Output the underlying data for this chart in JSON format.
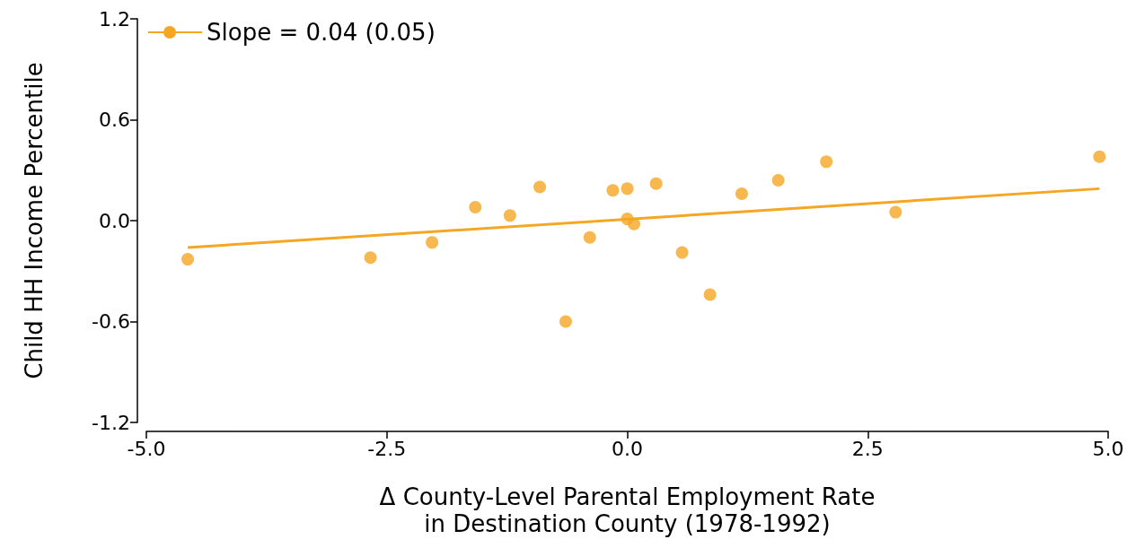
{
  "chart_data": {
    "type": "scatter",
    "xlabel": "Δ County-Level Parental Employment Rate\nin Destination County (1978-1992)",
    "ylabel": "Child HH Income Percentile",
    "xlim": [
      -5,
      5
    ],
    "xticks": [
      {
        "value": -5,
        "label": "-5.0"
      },
      -2.5,
      {
        "value": 0,
        "label": "0.0"
      },
      2.5,
      {
        "value": 5,
        "label": "5.0"
      }
    ],
    "ylim": [
      -1.2,
      1.2
    ],
    "yticks": [
      -1.2,
      -0.6,
      {
        "value": 0,
        "label": "0.0"
      },
      0.6,
      1.2
    ],
    "grid": false,
    "legend": "top left",
    "marker": "circle",
    "series": [
      {
        "color": "#f5a623",
        "x": [
          -4.57,
          -2.67,
          -2.03,
          -1.58,
          -1.22,
          -0.91,
          -0.64,
          -0.39,
          -0.15,
          0.0,
          0.0,
          0.07,
          0.3,
          0.57,
          0.86,
          1.19,
          1.57,
          2.07,
          2.79,
          4.91
        ],
        "values": [
          -0.23,
          -0.22,
          -0.13,
          0.08,
          0.03,
          0.2,
          -0.6,
          -0.1,
          0.18,
          0.19,
          0.01,
          -0.02,
          0.22,
          -0.19,
          -0.44,
          0.16,
          0.24,
          0.35,
          0.05,
          0.38
        ]
      },
      {
        "type": "line",
        "name": "Slope = 0.04 (0.05)",
        "color": "#f5a623",
        "marker": "none",
        "line_style": "solid",
        "x": [
          -4.57,
          4.91
        ],
        "values": [
          -0.16,
          0.19
        ]
      }
    ]
  }
}
